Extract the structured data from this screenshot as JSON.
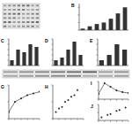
{
  "chart_data": [
    {
      "type": "bar",
      "title": "B",
      "categories": [
        null,
        null,
        null,
        null,
        null,
        null,
        null
      ],
      "values": [
        0.2,
        0.5,
        0.8,
        1.0,
        1.5,
        2.2,
        3.0
      ],
      "ylim": [
        0,
        3.5
      ],
      "yticks": [
        0,
        1,
        2,
        3
      ],
      "color": "#333333",
      "tick_labels": false
    },
    {
      "type": "bar",
      "title": "C",
      "categories": [
        null,
        null,
        null,
        null,
        null
      ],
      "values": [
        1,
        3,
        2.5,
        4,
        3.5
      ],
      "ylim": [
        0,
        5
      ],
      "yticks": [
        0,
        1,
        2,
        3,
        4,
        5
      ],
      "color": "#333333",
      "tick_labels": false
    },
    {
      "type": "bar",
      "title": "D",
      "categories": [
        null,
        null,
        null,
        null,
        null
      ],
      "values": [
        1,
        1.5,
        3,
        4.5,
        2
      ],
      "ylim": [
        0,
        5
      ],
      "yticks": [
        0,
        1,
        2,
        3,
        4,
        5
      ],
      "color": "#333333",
      "tick_labels": false
    },
    {
      "type": "bar",
      "title": "E",
      "categories": [
        null,
        null,
        null,
        null
      ],
      "values": [
        1,
        2,
        4,
        3
      ],
      "ylim": [
        0,
        5
      ],
      "yticks": [
        0,
        1,
        2,
        3,
        4,
        5
      ],
      "color": "#333333",
      "tick_labels": false
    },
    {
      "type": "line",
      "title": "G",
      "x": [
        0,
        1,
        2,
        3,
        4,
        5
      ],
      "values": [
        0.2,
        0.5,
        0.6,
        0.7,
        0.75,
        0.8
      ],
      "xlim": [
        0,
        5
      ],
      "ylim": [
        0,
        1
      ],
      "xticks": [
        0,
        1,
        2,
        3,
        4,
        5
      ],
      "yticks": [
        0,
        0.5,
        1
      ],
      "color": "#222222",
      "marker": "circle",
      "tick_labels": false
    },
    {
      "type": "scatter",
      "title": "H",
      "x": [
        0.5,
        1,
        1.5,
        2,
        2.5,
        3,
        3.5,
        4
      ],
      "values": [
        0.2,
        0.3,
        0.35,
        0.5,
        0.55,
        0.65,
        0.7,
        0.85
      ],
      "xlim": [
        0,
        5
      ],
      "ylim": [
        0,
        1
      ],
      "xticks": [
        0,
        1,
        2,
        3,
        4,
        5
      ],
      "yticks": [
        0,
        0.5,
        1
      ],
      "color": "#222222",
      "marker": "circle",
      "tick_labels": false
    },
    {
      "type": "line",
      "title": "I",
      "x": [
        0,
        1,
        2,
        3,
        4,
        5
      ],
      "values": [
        0.3,
        0.9,
        0.7,
        0.5,
        0.4,
        0.35
      ],
      "xlim": [
        0,
        5
      ],
      "ylim": [
        0,
        1
      ],
      "xticks": [
        0,
        1,
        2,
        3,
        4,
        5
      ],
      "yticks": [
        0,
        0.5,
        1
      ],
      "color": "#222222",
      "marker": "circle",
      "tick_labels": false
    },
    {
      "type": "scatter",
      "title": "J",
      "x": [
        0.5,
        1.5,
        2,
        3,
        3.5,
        4.5
      ],
      "values": [
        0.2,
        0.35,
        0.4,
        0.6,
        0.65,
        0.8
      ],
      "xlim": [
        0,
        5
      ],
      "ylim": [
        0,
        1
      ],
      "xticks": [
        0,
        1,
        2,
        3,
        4,
        5
      ],
      "yticks": [
        0,
        0.5,
        1
      ],
      "color": "#222222",
      "marker": "circle",
      "tick_labels": false
    }
  ]
}
